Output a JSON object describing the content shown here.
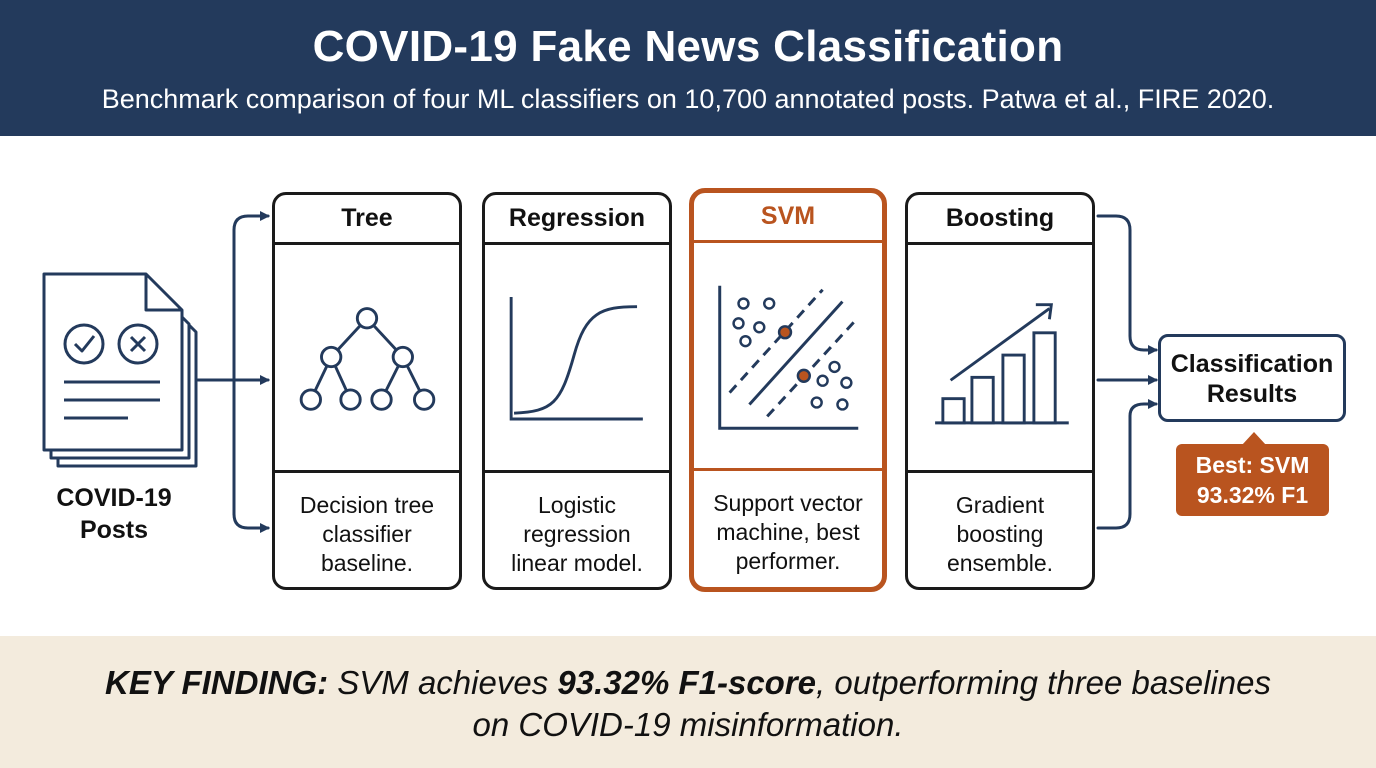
{
  "header": {
    "title": "COVID-19 Fake News Classification",
    "subtitle": "Benchmark comparison of four ML classifiers on 10,700 annotated posts. Patwa et al., FIRE 2020."
  },
  "input": {
    "label_line1": "COVID-19",
    "label_line2": "Posts"
  },
  "classifiers": [
    {
      "title": "Tree",
      "desc": [
        "Decision tree",
        "classifier",
        "baseline."
      ],
      "icon": "decision-tree-icon"
    },
    {
      "title": "Regression",
      "desc": [
        "Logistic",
        "regression",
        "linear model."
      ],
      "icon": "sigmoid-curve-icon"
    },
    {
      "title": "SVM",
      "desc": [
        "Support vector",
        "machine, best",
        "performer."
      ],
      "icon": "svm-scatter-icon",
      "highlighted": true
    },
    {
      "title": "Boosting",
      "desc": [
        "Gradient",
        "boosting",
        "ensemble."
      ],
      "icon": "rising-bar-chart-icon"
    }
  ],
  "output": {
    "line1": "Classification",
    "line2": "Results"
  },
  "best": {
    "line1": "Best: SVM",
    "line2": "93.32% F1"
  },
  "key_finding": {
    "label": "KEY FINDING:",
    "text1": " SVM achieves ",
    "metric": "93.32% F1-score",
    "text2": ", outperforming three baselines",
    "line2": "on COVID-19 misinformation."
  },
  "colors": {
    "navy": "#233a5c",
    "accent": "#b9541f",
    "footer_bg": "#f3ebdd"
  }
}
